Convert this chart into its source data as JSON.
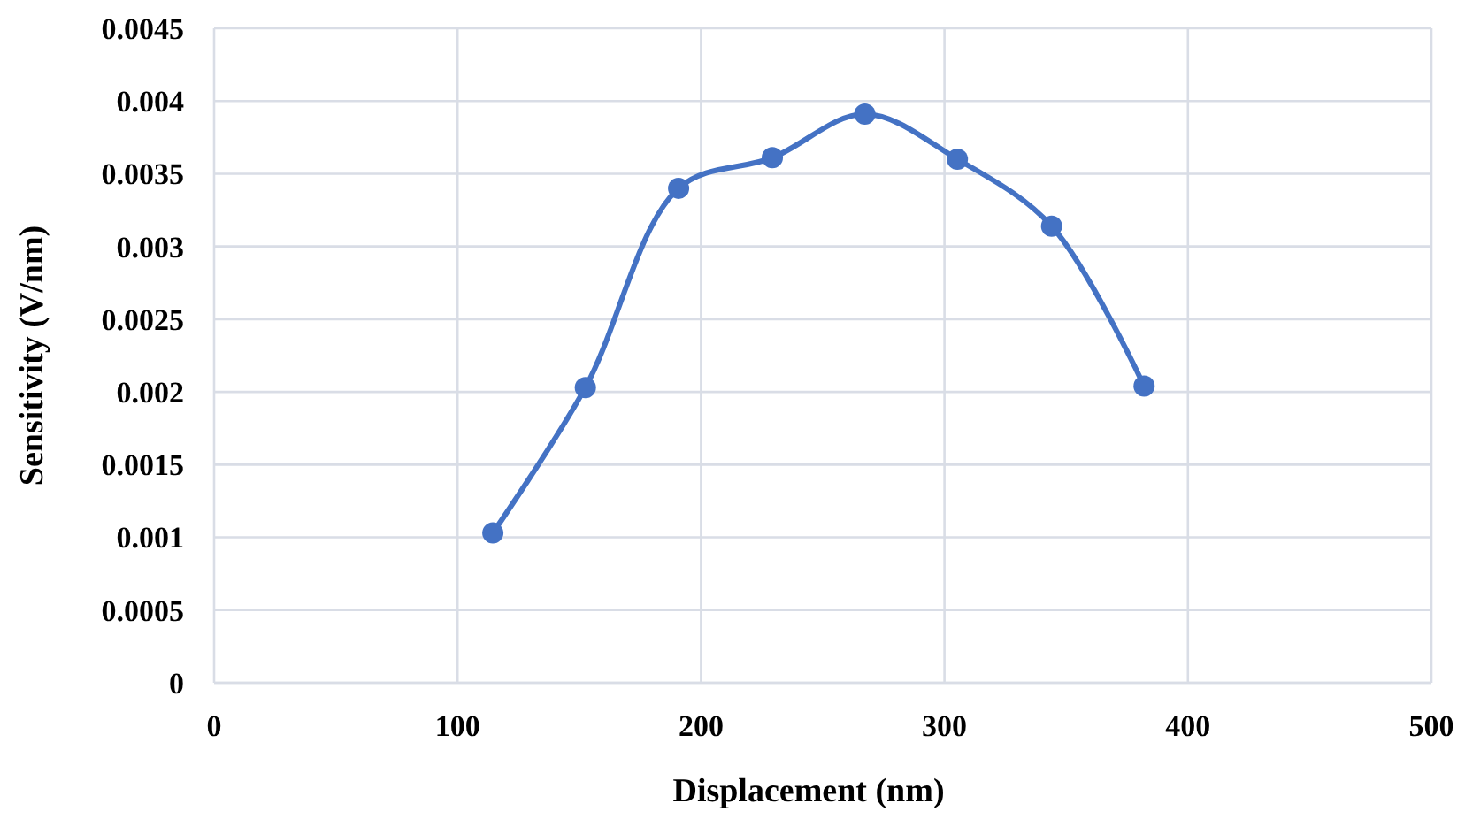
{
  "chart_data": {
    "type": "line",
    "xlabel": "Displacement (nm)",
    "ylabel": "Sensitivity (V/nm)",
    "x": [
      114.5,
      152.5,
      190.8,
      229.3,
      267.3,
      305.3,
      344,
      382
    ],
    "series": [
      {
        "color": "#4472c4",
        "values": [
          0.00103,
          0.00203,
          0.0034,
          0.00361,
          0.00391,
          0.0036,
          0.00314,
          0.00204
        ]
      }
    ],
    "xlim": [
      0,
      500
    ],
    "xticks": [
      0,
      100,
      200,
      300,
      400,
      500
    ],
    "ylim": [
      0,
      0.0045
    ],
    "yticks": [
      0,
      0.0005,
      0.001,
      0.0015,
      0.002,
      0.0025,
      0.003,
      0.0035,
      0.004,
      0.0045
    ],
    "grid": true,
    "marker": "circle",
    "line_style": "solid"
  }
}
